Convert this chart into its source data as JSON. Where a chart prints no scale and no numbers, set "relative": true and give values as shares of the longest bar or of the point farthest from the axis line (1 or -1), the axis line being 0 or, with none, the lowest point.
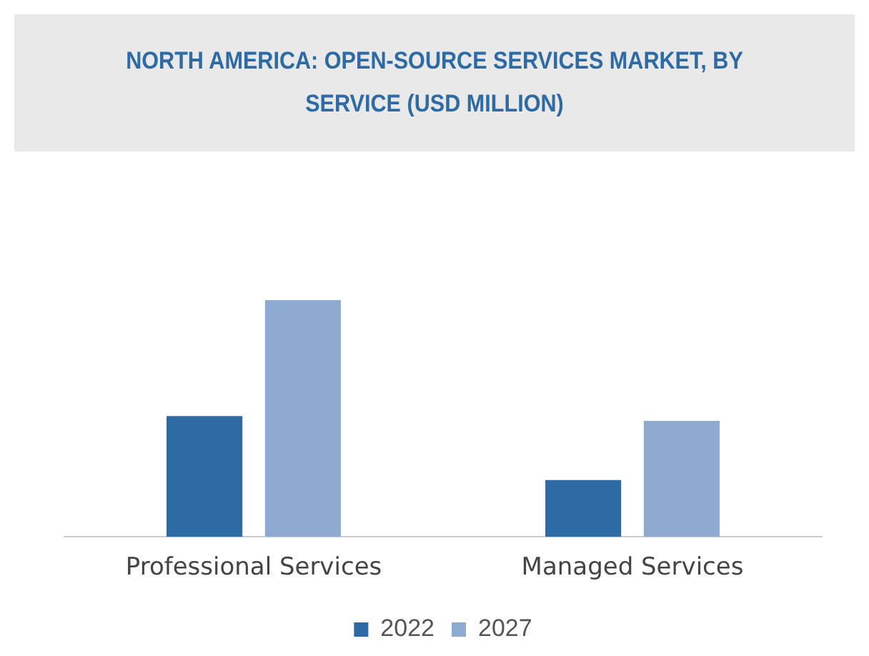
{
  "chart_data": {
    "type": "bar",
    "title": "NORTH AMERICA: OPEN-SOURCE SERVICES MARKET, BY SERVICE (USD MILLION)",
    "relative": true,
    "categories": [
      "Professional Services",
      "Managed Services"
    ],
    "series": [
      {
        "name": "2022",
        "color": "#2e6aa3",
        "values": [
          0.51,
          0.24
        ]
      },
      {
        "name": "2027",
        "color": "#8eaad1",
        "values": [
          1,
          0.49
        ]
      }
    ],
    "legend": "bottom",
    "grid": false
  }
}
